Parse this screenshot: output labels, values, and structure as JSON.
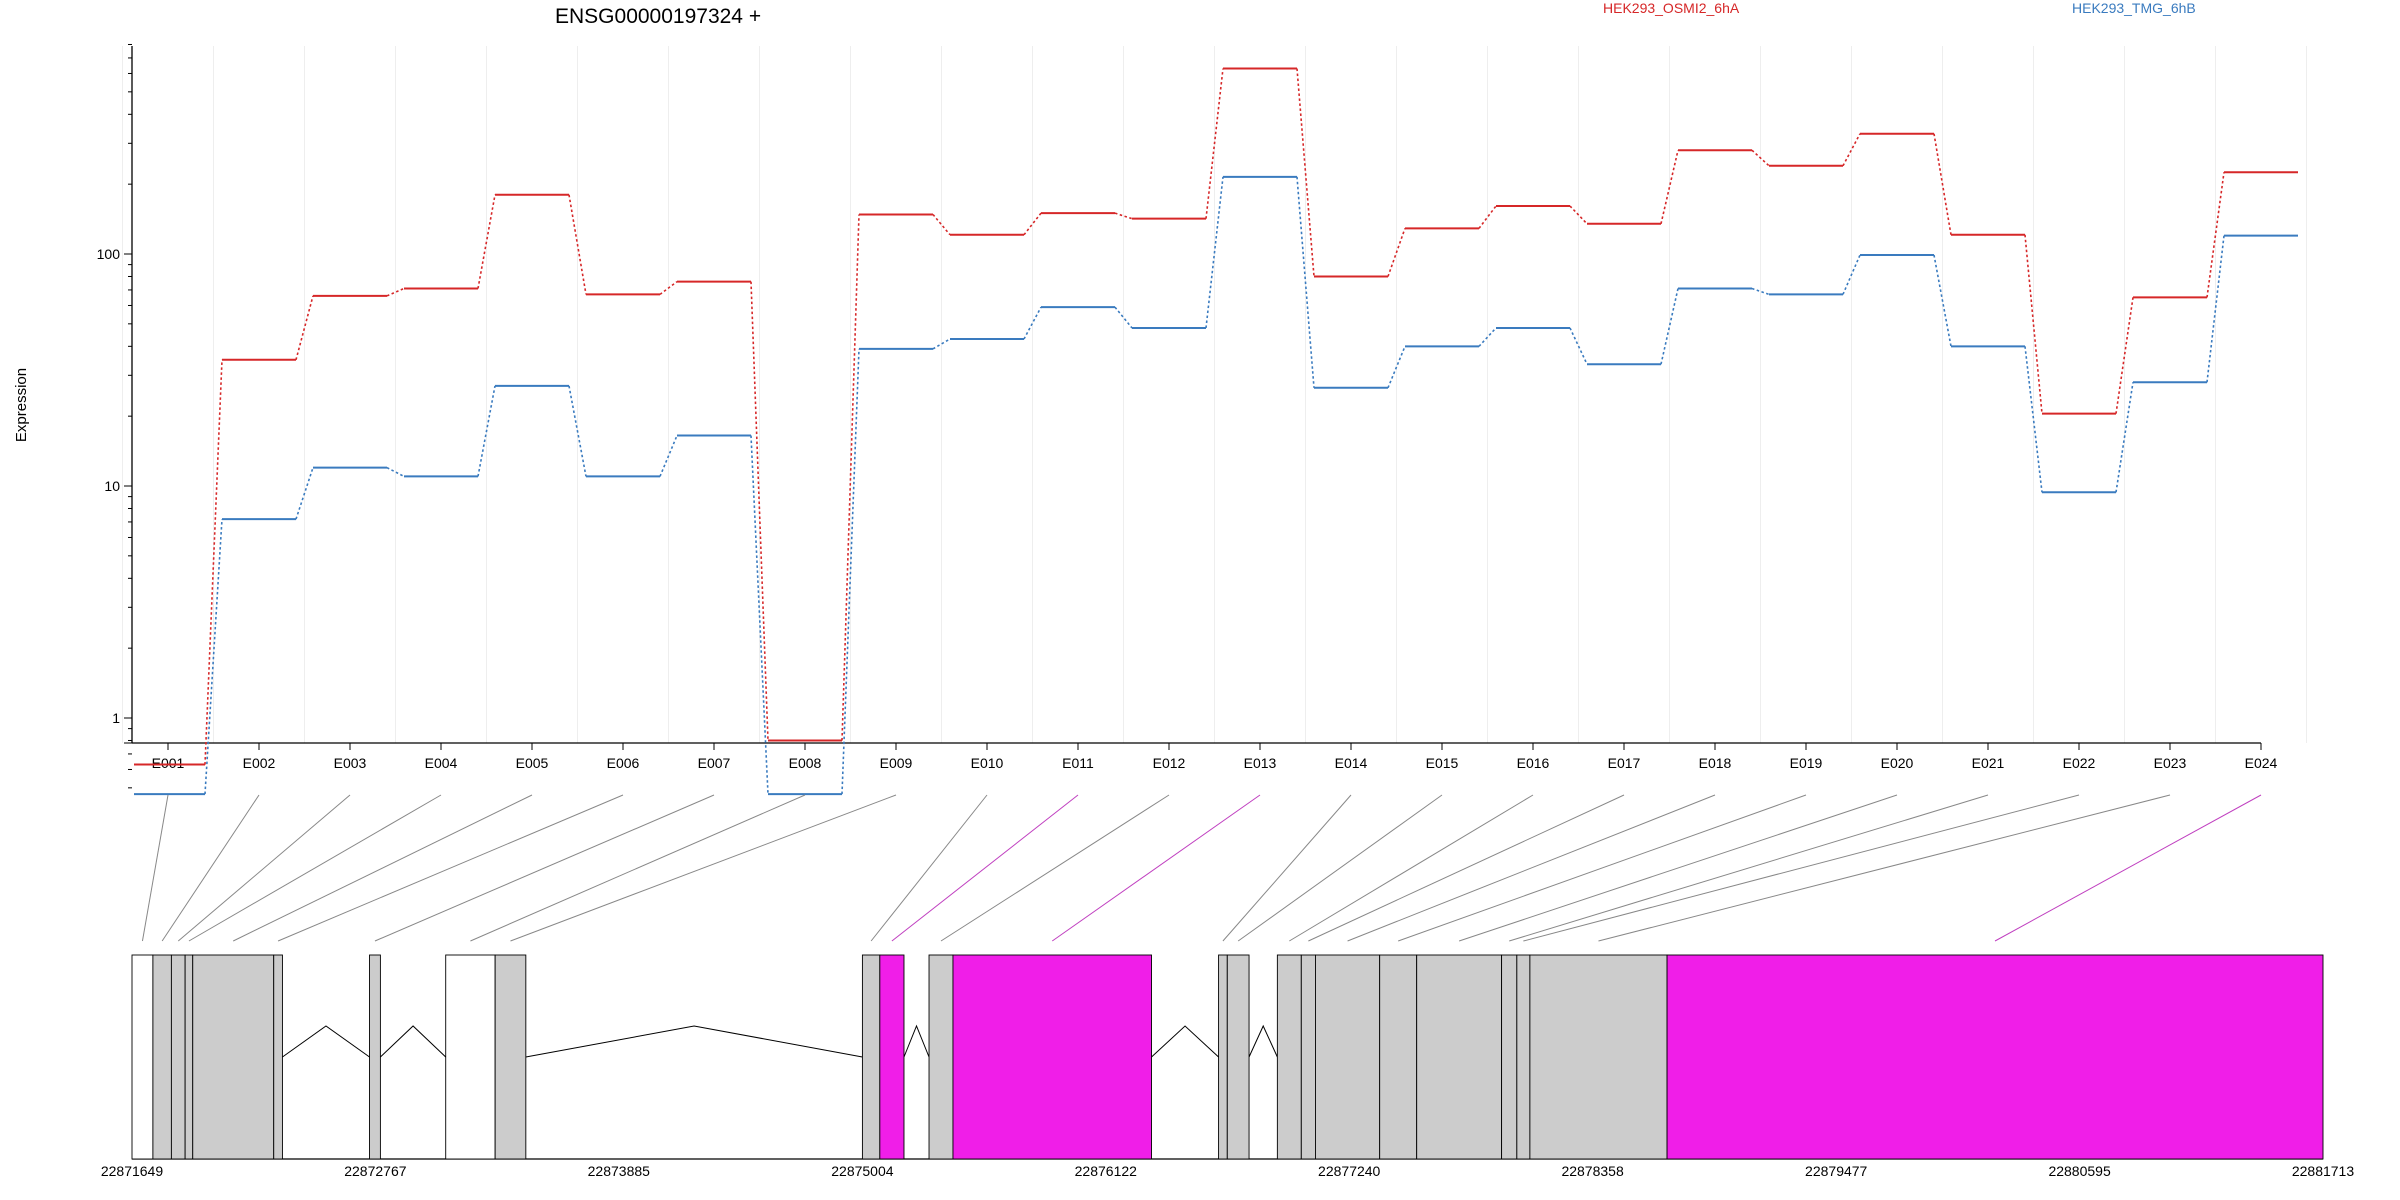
{
  "chart_data": {
    "type": "line",
    "title": "ENSG00000197324 +",
    "ylabel": "Expression",
    "yscale": "log",
    "ylim": [
      0.45,
      800
    ],
    "yticks": [
      "1",
      "10",
      "100"
    ],
    "categories": [
      "E001",
      "E002",
      "E003",
      "E004",
      "E005",
      "E006",
      "E007",
      "E008",
      "E009",
      "E010",
      "E011",
      "E012",
      "E013",
      "E014",
      "E015",
      "E016",
      "E017",
      "E018",
      "E019",
      "E020",
      "E021",
      "E022",
      "E023",
      "E024"
    ],
    "series": [
      {
        "name": "HEK293_OSMI2_6hA",
        "color": "#d62728",
        "values": [
          0.63,
          35,
          66,
          71,
          180,
          67,
          76,
          0.8,
          148,
          121,
          150,
          142,
          630,
          80,
          129,
          161,
          135,
          280,
          240,
          330,
          121,
          20.5,
          65,
          225
        ]
      },
      {
        "name": "HEK293_TMG_6hB",
        "color": "#3a7bbf",
        "values": [
          0.47,
          7.2,
          12,
          11,
          27,
          11,
          16.5,
          0.47,
          39,
          43,
          59,
          48,
          215,
          26.5,
          40,
          48,
          33.5,
          71,
          67,
          99,
          40,
          9.4,
          28,
          120
        ]
      }
    ],
    "gene_model": {
      "coordinates": [
        "22871649",
        "22872767",
        "22873885",
        "22875004",
        "22876122",
        "22877240",
        "22878358",
        "22879477",
        "22880595",
        "22881713"
      ],
      "exons": [
        {
          "id": "E001",
          "start": 22871649,
          "end": 22871745,
          "fill": "white"
        },
        {
          "id": "E002",
          "start": 22871745,
          "end": 22871830,
          "fill": "gray"
        },
        {
          "id": "E003",
          "start": 22871830,
          "end": 22871893,
          "fill": "gray"
        },
        {
          "id": "E004",
          "start": 22871893,
          "end": 22871928,
          "fill": "gray"
        },
        {
          "id": "E005",
          "start": 22871928,
          "end": 22872300,
          "fill": "gray"
        },
        {
          "id": "E006",
          "start": 22872300,
          "end": 22872340,
          "fill": "gray"
        },
        {
          "id": "E007",
          "start": 22872740,
          "end": 22872790,
          "fill": "gray"
        },
        {
          "id": "E008",
          "start": 22873090,
          "end": 22873317,
          "fill": "white"
        },
        {
          "id": "E009",
          "start": 22873317,
          "end": 22873458,
          "fill": "gray"
        },
        {
          "id": "E010",
          "start": 22875004,
          "end": 22875084,
          "fill": "gray"
        },
        {
          "id": "E011",
          "start": 22875084,
          "end": 22875195,
          "fill": "magenta"
        },
        {
          "id": "E012",
          "start": 22875310,
          "end": 22875420,
          "fill": "gray"
        },
        {
          "id": "E013",
          "start": 22875420,
          "end": 22876332,
          "fill": "magenta"
        },
        {
          "id": "E014",
          "start": 22876640,
          "end": 22876680,
          "fill": "gray"
        },
        {
          "id": "E015",
          "start": 22876680,
          "end": 22876780,
          "fill": "gray"
        },
        {
          "id": "E016",
          "start": 22876910,
          "end": 22877020,
          "fill": "gray"
        },
        {
          "id": "E017",
          "start": 22877020,
          "end": 22877085,
          "fill": "gray"
        },
        {
          "id": "E018",
          "start": 22877085,
          "end": 22877380,
          "fill": "gray"
        },
        {
          "id": "E019",
          "start": 22877380,
          "end": 22877550,
          "fill": "gray"
        },
        {
          "id": "E020",
          "start": 22877550,
          "end": 22877940,
          "fill": "gray"
        },
        {
          "id": "E021",
          "start": 22877940,
          "end": 22878010,
          "fill": "gray"
        },
        {
          "id": "E022",
          "start": 22878010,
          "end": 22878070,
          "fill": "gray"
        },
        {
          "id": "E023",
          "start": 22878070,
          "end": 22878700,
          "fill": "gray"
        },
        {
          "id": "E024",
          "start": 22878700,
          "end": 22881713,
          "fill": "magenta"
        }
      ],
      "introns": [
        [
          22872340,
          22872740
        ],
        [
          22872790,
          22873090
        ],
        [
          22873458,
          22875004
        ],
        [
          22875195,
          22875310
        ],
        [
          22876332,
          22876640
        ],
        [
          22876780,
          22876910
        ]
      ],
      "colors": {
        "gray": "#cccccc",
        "magenta": "#f01ee8",
        "white": "#ffffff"
      }
    }
  }
}
